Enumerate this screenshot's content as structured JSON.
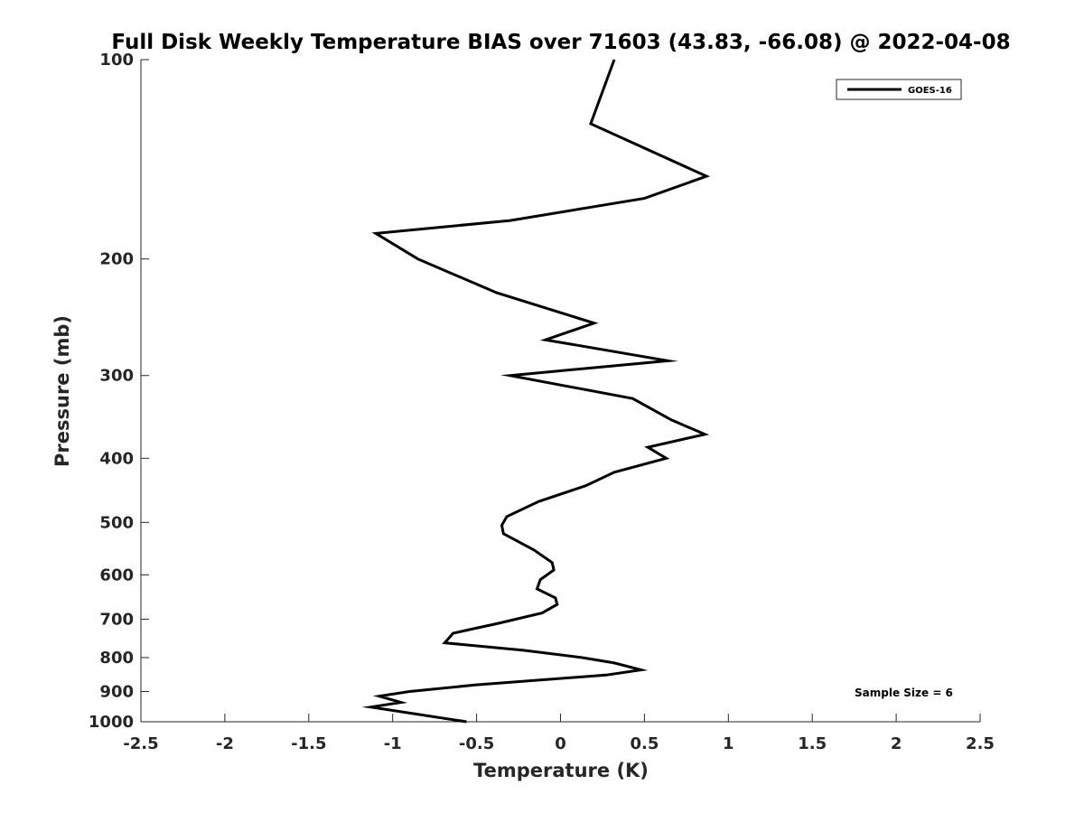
{
  "chart_data": {
    "type": "line",
    "title": "Full Disk Weekly Temperature BIAS over 71603 (43.83, -66.08) @ 2022-04-08",
    "xlabel": "Temperature (K)",
    "ylabel": "Pressure (mb)",
    "xlim": [
      -2.5,
      2.5
    ],
    "ylim": [
      100,
      1000
    ],
    "y_scale": "log",
    "y_reversed": true,
    "x_ticks": [
      -2.5,
      -2,
      -1.5,
      -1,
      -0.5,
      0,
      0.5,
      1,
      1.5,
      2,
      2.5
    ],
    "x_tick_labels": [
      "-2.5",
      "-2",
      "-1.5",
      "-1",
      "-0.5",
      "0",
      "0.5",
      "1",
      "1.5",
      "2",
      "2.5"
    ],
    "y_ticks": [
      100,
      200,
      300,
      400,
      500,
      600,
      700,
      800,
      900,
      1000
    ],
    "y_tick_labels": [
      "100",
      "200",
      "300",
      "400",
      "500",
      "600",
      "700",
      "800",
      "900",
      "1000"
    ],
    "grid": false,
    "legend": {
      "position": "top-right",
      "entries": [
        "GOES-16"
      ]
    },
    "annotations": [
      {
        "text": "Sample Size = 6",
        "position": "bottom-right"
      }
    ],
    "series": [
      {
        "name": "GOES-16",
        "color": "#000000",
        "x": [
          0.32,
          0.18,
          0.87,
          0.5,
          -0.3,
          -1.1,
          -0.85,
          -0.38,
          0.2,
          -0.09,
          0.64,
          -0.3,
          0.43,
          0.66,
          0.86,
          0.52,
          0.63,
          0.32,
          0.15,
          -0.13,
          -0.32,
          -0.35,
          -0.34,
          -0.16,
          -0.05,
          -0.04,
          -0.12,
          -0.14,
          -0.03,
          -0.02,
          -0.11,
          -0.37,
          -0.64,
          -0.69,
          -0.22,
          0.13,
          0.32,
          0.48,
          0.27,
          -0.51,
          -0.9,
          -1.08,
          -0.95,
          -1.13,
          -0.56
        ],
        "y": [
          100,
          125,
          150,
          162,
          175,
          183,
          200,
          225,
          250,
          265,
          285,
          300,
          325,
          350,
          368,
          385,
          400,
          420,
          440,
          465,
          490,
          505,
          520,
          550,
          575,
          590,
          610,
          630,
          650,
          665,
          685,
          710,
          735,
          760,
          780,
          800,
          815,
          835,
          850,
          880,
          900,
          915,
          935,
          950,
          1000
        ]
      }
    ]
  }
}
